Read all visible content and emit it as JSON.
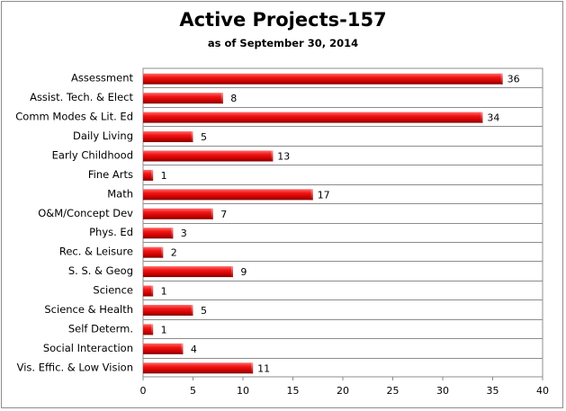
{
  "chart_data": {
    "type": "bar",
    "orientation": "horizontal",
    "title": "Active Projects-157",
    "subtitle": "as of September 30, 2014",
    "categories": [
      "Assessment",
      "Assist. Tech. & Elect",
      "Comm Modes & Lit. Ed",
      "Daily Living",
      "Early Childhood",
      "Fine Arts",
      "Math",
      "O&M/Concept Dev",
      "Phys. Ed",
      "Rec. & Leisure",
      "S. S. & Geog",
      "Science",
      "Science & Health",
      "Self Determ.",
      "Social Interaction",
      "Vis. Effic. & Low Vision"
    ],
    "values": [
      36,
      8,
      34,
      5,
      13,
      1,
      17,
      7,
      3,
      2,
      9,
      1,
      5,
      1,
      4,
      11
    ],
    "xlim": [
      0,
      40
    ],
    "xticks": [
      0,
      5,
      10,
      15,
      20,
      25,
      30,
      35,
      40
    ],
    "grid": "horizontal",
    "legend": "none",
    "bar_color": "#e01010"
  }
}
